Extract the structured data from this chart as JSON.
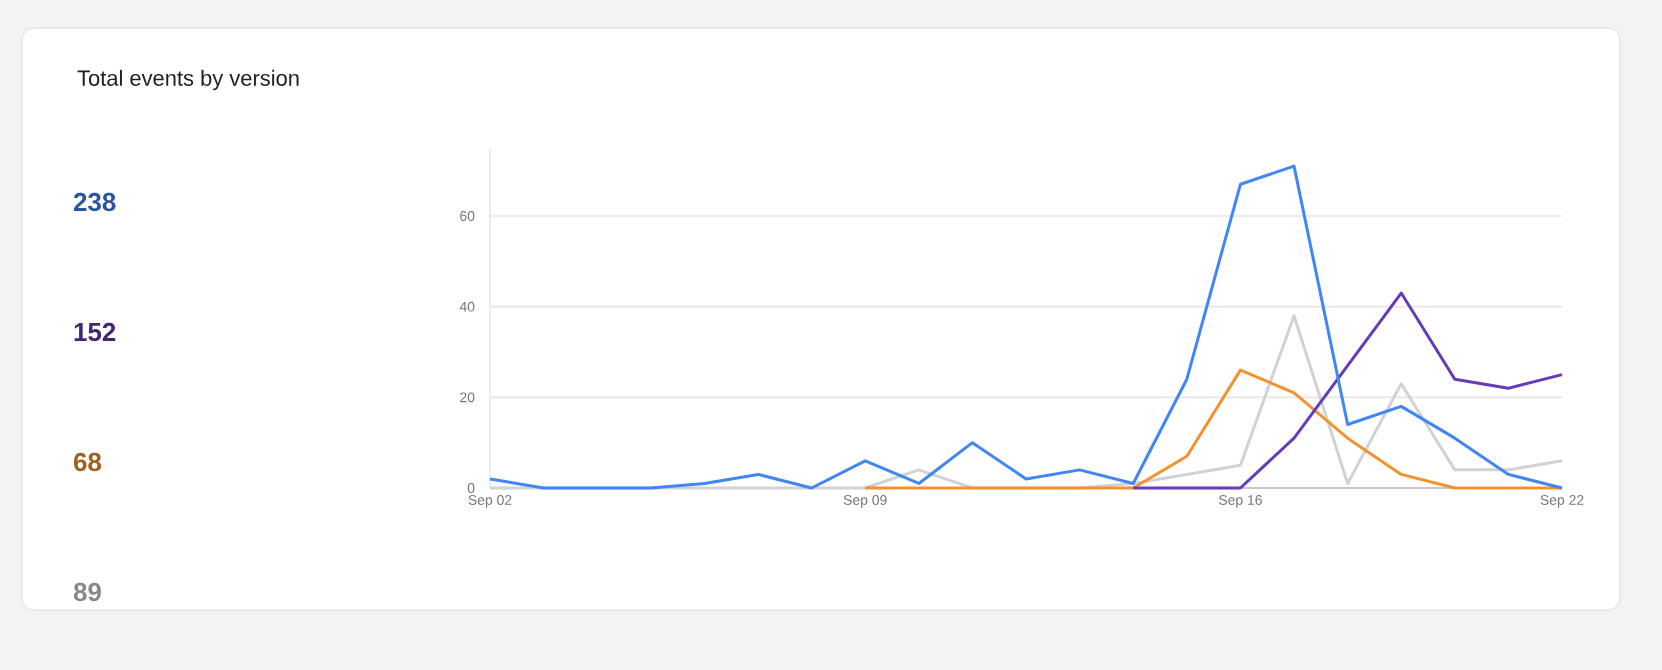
{
  "chart_data": {
    "type": "line",
    "title": "Total events by version",
    "categories": [
      "Sep 02",
      null,
      null,
      null,
      null,
      null,
      null,
      "Sep 09",
      null,
      null,
      null,
      null,
      null,
      null,
      "Sep 16",
      null,
      null,
      null,
      null,
      null,
      "Sep 22"
    ],
    "series": [
      {
        "color": "#d0d3d6",
        "values": [
          0,
          0,
          0,
          0,
          0,
          0,
          0,
          0,
          4,
          0,
          0,
          0,
          1,
          3,
          5,
          38,
          1,
          23,
          4,
          4,
          6
        ]
      },
      {
        "color": "#f4922d",
        "values": [
          null,
          null,
          null,
          null,
          null,
          null,
          null,
          0,
          0,
          0,
          0,
          0,
          0,
          7,
          26,
          21,
          11,
          3,
          0,
          0,
          0
        ]
      },
      {
        "color": "#673ab7",
        "values": [
          null,
          null,
          null,
          null,
          null,
          null,
          null,
          null,
          null,
          null,
          null,
          null,
          0,
          0,
          0,
          11,
          27,
          43,
          24,
          22,
          25
        ]
      },
      {
        "color": "#4285f4",
        "values": [
          2,
          0,
          0,
          0,
          1,
          3,
          0,
          6,
          1,
          10,
          2,
          4,
          1,
          24,
          67,
          71,
          14,
          18,
          11,
          3,
          0
        ]
      }
    ],
    "annotations": [
      "238",
      "152",
      "68",
      "89"
    ],
    "ylim": [
      0,
      75
    ],
    "yticks": [
      0,
      20,
      40,
      60
    ],
    "grid": "y",
    "marker": "none",
    "line_style": "solid"
  }
}
